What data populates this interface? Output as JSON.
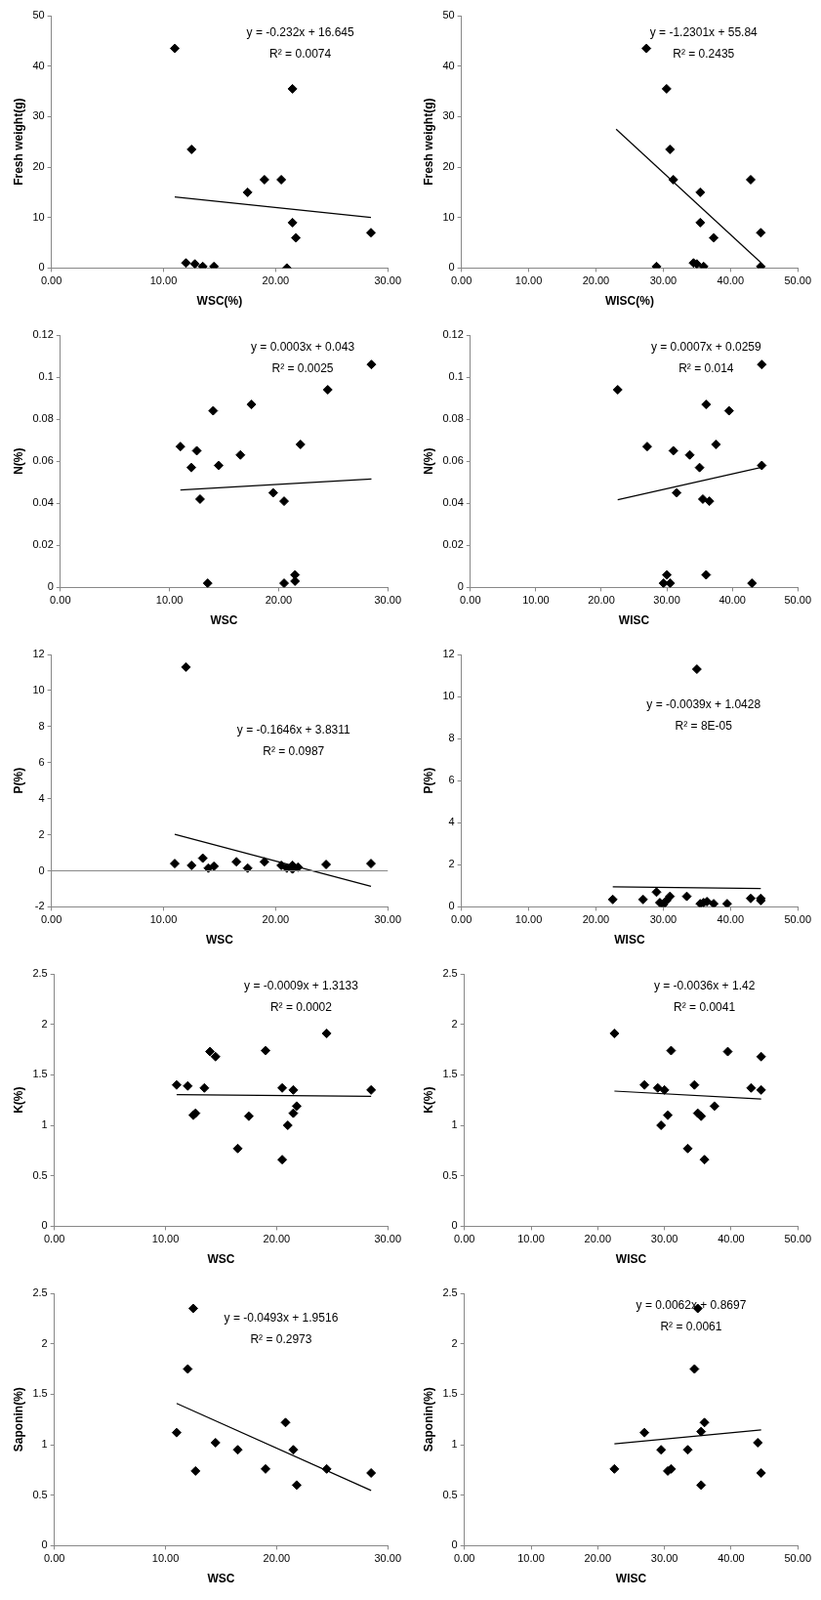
{
  "chart_data": [
    {
      "type": "scatter",
      "x_label": "WSC(%)",
      "y_label": "Fresh weight(g)",
      "xlim": [
        0,
        30
      ],
      "xticks": [
        {
          "value": 0,
          "label": "0.00"
        },
        {
          "value": 10,
          "label": "10.00"
        },
        {
          "value": 20,
          "label": "20.00"
        },
        {
          "value": 30,
          "label": "30.00"
        }
      ],
      "ylim": [
        0,
        50
      ],
      "yticks": [
        0,
        10,
        20,
        30,
        40,
        50
      ],
      "grid": false,
      "annotations": [
        "y = -0.232x + 16.645",
        "R² = 0.0074"
      ],
      "series": [
        {
          "type": "scatter",
          "marker": "diamond",
          "color": "#000000",
          "x": [
            11,
            12,
            12.5,
            12.8,
            13.5,
            14.5,
            17.5,
            19,
            20.5,
            21,
            21.5,
            21.5,
            21.8,
            28.5
          ],
          "values": [
            43.5,
            1,
            23.5,
            0.8,
            0.3,
            0.3,
            15,
            17.5,
            17.5,
            0,
            35.5,
            9,
            6,
            7
          ]
        },
        {
          "type": "line",
          "line_style": "solid",
          "color": "#000000",
          "x": [
            11,
            28.5
          ],
          "values": [
            14.1,
            10.0
          ]
        }
      ]
    },
    {
      "type": "scatter",
      "x_label": "WISC(%)",
      "y_label": "Fresh weight(g)",
      "xlim": [
        0,
        50
      ],
      "xticks": [
        {
          "value": 0,
          "label": "0.00"
        },
        {
          "value": 10,
          "label": "10.00"
        },
        {
          "value": 20,
          "label": "20.00"
        },
        {
          "value": 30,
          "label": "30.00"
        },
        {
          "value": 40,
          "label": "40.00"
        },
        {
          "value": 50,
          "label": "50.00"
        }
      ],
      "ylim": [
        0,
        50
      ],
      "yticks": [
        0,
        10,
        20,
        30,
        40,
        50
      ],
      "grid": false,
      "annotations": [
        "y = -1.2301x + 55.84",
        "R² = 0.2435"
      ],
      "series": [
        {
          "type": "scatter",
          "marker": "diamond",
          "color": "#000000",
          "x": [
            27.5,
            30.5,
            31,
            31.5,
            29,
            34.5,
            35,
            35.5,
            35.5,
            36,
            37.5,
            43,
            44.5,
            44.5
          ],
          "values": [
            43.5,
            35.5,
            23.5,
            17.5,
            0.3,
            1,
            0.8,
            9,
            15,
            0.3,
            6,
            17.5,
            0.3,
            7
          ]
        },
        {
          "type": "line",
          "line_style": "solid",
          "color": "#000000",
          "x": [
            23,
            44.5
          ],
          "values": [
            27.5,
            1.1
          ]
        }
      ]
    },
    {
      "type": "scatter",
      "x_label": "WSC",
      "y_label": "N(%)",
      "xlim": [
        0,
        30
      ],
      "xticks": [
        {
          "value": 0,
          "label": "0.00"
        },
        {
          "value": 10,
          "label": "10.00"
        },
        {
          "value": 20,
          "label": "20.00"
        },
        {
          "value": 30,
          "label": "30.00"
        }
      ],
      "ylim": [
        0,
        0.12
      ],
      "yticks": [
        0,
        0.02,
        0.04,
        0.06,
        0.08,
        0.1,
        0.12
      ],
      "grid": false,
      "annotations": [
        "y = 0.0003x + 0.043",
        "R² = 0.0025"
      ],
      "series": [
        {
          "type": "scatter",
          "marker": "diamond",
          "color": "#000000",
          "x": [
            11,
            12,
            12.5,
            12.8,
            13.5,
            14,
            14.5,
            16.5,
            17.5,
            19.5,
            20.5,
            20.5,
            21.5,
            21.5,
            22,
            24.5,
            28.5
          ],
          "values": [
            0.067,
            0.057,
            0.065,
            0.042,
            0.002,
            0.084,
            0.058,
            0.063,
            0.087,
            0.045,
            0.041,
            0.002,
            0.006,
            0.003,
            0.068,
            0.094,
            0.106
          ]
        },
        {
          "type": "line",
          "line_style": "solid",
          "color": "#000000",
          "x": [
            11,
            28.5
          ],
          "values": [
            0.0463,
            0.0516
          ]
        }
      ]
    },
    {
      "type": "scatter",
      "x_label": "WISC",
      "y_label": "N(%)",
      "xlim": [
        0,
        50
      ],
      "xticks": [
        {
          "value": 0,
          "label": "0.00"
        },
        {
          "value": 10,
          "label": "10.00"
        },
        {
          "value": 20,
          "label": "20.00"
        },
        {
          "value": 30,
          "label": "30.00"
        },
        {
          "value": 40,
          "label": "40.00"
        },
        {
          "value": 50,
          "label": "50.00"
        }
      ],
      "ylim": [
        0,
        0.12
      ],
      "yticks": [
        0,
        0.02,
        0.04,
        0.06,
        0.08,
        0.1,
        0.12
      ],
      "grid": false,
      "annotations": [
        "y = 0.0007x + 0.0259",
        "R² = 0.014"
      ],
      "series": [
        {
          "type": "scatter",
          "marker": "diamond",
          "color": "#000000",
          "x": [
            22.5,
            27,
            29.5,
            30,
            30.5,
            31,
            31.5,
            33.5,
            35,
            35.5,
            36,
            36,
            36.5,
            37.5,
            39.5,
            43,
            44.5,
            44.5
          ],
          "values": [
            0.094,
            0.067,
            0.002,
            0.006,
            0.002,
            0.065,
            0.045,
            0.063,
            0.057,
            0.042,
            0.006,
            0.087,
            0.041,
            0.068,
            0.084,
            0.002,
            0.058,
            0.106
          ]
        },
        {
          "type": "line",
          "line_style": "solid",
          "color": "#000000",
          "x": [
            22.5,
            44.5
          ],
          "values": [
            0.0417,
            0.0571
          ]
        }
      ]
    },
    {
      "type": "scatter",
      "x_label": "WSC",
      "y_label": "P(%)",
      "xlim": [
        0,
        30
      ],
      "xticks": [
        {
          "value": 0,
          "label": "0.00"
        },
        {
          "value": 10,
          "label": "10.00"
        },
        {
          "value": 20,
          "label": "20.00"
        },
        {
          "value": 30,
          "label": "30.00"
        }
      ],
      "ylim": [
        -2,
        12
      ],
      "yticks": [
        -2,
        0,
        2,
        4,
        6,
        8,
        10,
        12
      ],
      "grid": false,
      "annotations": [
        "y = -0.1646x + 3.8311",
        "R² = 0.0987"
      ],
      "series": [
        {
          "type": "scatter",
          "marker": "diamond",
          "color": "#000000",
          "x": [
            11,
            12,
            12.5,
            13.5,
            14,
            14.5,
            16.5,
            17.5,
            19,
            20.5,
            21,
            21.5,
            21.5,
            22,
            24.5,
            28.5
          ],
          "values": [
            0.4,
            11.3,
            0.3,
            0.7,
            0.15,
            0.25,
            0.5,
            0.15,
            0.5,
            0.3,
            0.15,
            0.3,
            0.1,
            0.2,
            0.35,
            0.4
          ]
        },
        {
          "type": "line",
          "line_style": "solid",
          "color": "#000000",
          "x": [
            11,
            28.5
          ],
          "values": [
            2.02,
            -0.86
          ]
        }
      ]
    },
    {
      "type": "scatter",
      "x_label": "WISC",
      "y_label": "P(%)",
      "xlim": [
        0,
        50
      ],
      "xticks": [
        {
          "value": 0,
          "label": "0.00"
        },
        {
          "value": 10,
          "label": "10.00"
        },
        {
          "value": 20,
          "label": "20.00"
        },
        {
          "value": 30,
          "label": "30.00"
        },
        {
          "value": 40,
          "label": "40.00"
        },
        {
          "value": 50,
          "label": "50.00"
        }
      ],
      "ylim": [
        0,
        12
      ],
      "yticks": [
        0,
        2,
        4,
        6,
        8,
        10,
        12
      ],
      "grid": false,
      "annotations": [
        "y = -0.0039x + 1.0428",
        "R² = 8E-05"
      ],
      "series": [
        {
          "type": "scatter",
          "marker": "diamond",
          "color": "#000000",
          "x": [
            22.5,
            27,
            29,
            29.5,
            30,
            30.5,
            31,
            33.5,
            35,
            35.5,
            36,
            36.5,
            37.5,
            39.5,
            43,
            44.5,
            44.5
          ],
          "values": [
            0.35,
            0.35,
            0.7,
            0.2,
            0.1,
            0.3,
            0.5,
            0.5,
            11.3,
            0.15,
            0.2,
            0.25,
            0.15,
            0.15,
            0.4,
            0.3,
            0.4
          ]
        },
        {
          "type": "line",
          "line_style": "solid",
          "color": "#000000",
          "x": [
            22.5,
            44.5
          ],
          "values": [
            0.955,
            0.869
          ]
        }
      ]
    },
    {
      "type": "scatter",
      "x_label": "WSC",
      "y_label": "K(%)",
      "xlim": [
        0,
        30
      ],
      "xticks": [
        {
          "value": 0,
          "label": "0.00"
        },
        {
          "value": 10,
          "label": "10.00"
        },
        {
          "value": 20,
          "label": "20.00"
        },
        {
          "value": 30,
          "label": "30.00"
        }
      ],
      "ylim": [
        0,
        2.5
      ],
      "yticks": [
        0,
        0.5,
        1,
        1.5,
        2,
        2.5
      ],
      "grid": false,
      "annotations": [
        "y = -0.0009x + 1.3133",
        "R² = 0.0002"
      ],
      "series": [
        {
          "type": "scatter",
          "marker": "diamond",
          "color": "#000000",
          "x": [
            11,
            12,
            12.5,
            12.7,
            13.5,
            14,
            14.5,
            16.5,
            17.5,
            19,
            20.5,
            20.5,
            21,
            21.5,
            21.5,
            21.8,
            24.5,
            28.5
          ],
          "values": [
            1.4,
            1.39,
            1.1,
            1.12,
            1.37,
            1.73,
            1.68,
            0.77,
            1.09,
            1.74,
            1.37,
            0.66,
            1,
            1.35,
            1.12,
            1.19,
            1.91,
            1.35
          ]
        },
        {
          "type": "line",
          "line_style": "solid",
          "color": "#000000",
          "x": [
            11,
            28.5
          ],
          "values": [
            1.3034,
            1.2877
          ]
        }
      ]
    },
    {
      "type": "scatter",
      "x_label": "WISC",
      "y_label": "K(%)",
      "xlim": [
        0,
        50
      ],
      "xticks": [
        {
          "value": 0,
          "label": "0.00"
        },
        {
          "value": 10,
          "label": "10.00"
        },
        {
          "value": 20,
          "label": "20.00"
        },
        {
          "value": 30,
          "label": "30.00"
        },
        {
          "value": 40,
          "label": "40.00"
        },
        {
          "value": 50,
          "label": "50.00"
        }
      ],
      "ylim": [
        0,
        2.5
      ],
      "yticks": [
        0,
        0.5,
        1,
        1.5,
        2,
        2.5
      ],
      "grid": false,
      "annotations": [
        "y = -0.0036x + 1.42",
        "R² = 0.0041"
      ],
      "series": [
        {
          "type": "scatter",
          "marker": "diamond",
          "color": "#000000",
          "x": [
            22.5,
            27,
            29,
            29.5,
            30,
            30.5,
            31,
            33.5,
            34.5,
            35,
            35.5,
            36,
            37.5,
            39.5,
            43,
            44.5,
            44.5
          ],
          "values": [
            1.91,
            1.4,
            1.37,
            1,
            1.35,
            1.1,
            1.74,
            0.77,
            1.4,
            1.12,
            1.09,
            0.66,
            1.19,
            1.73,
            1.37,
            1.68,
            1.35
          ]
        },
        {
          "type": "line",
          "line_style": "solid",
          "color": "#000000",
          "x": [
            22.5,
            44.5
          ],
          "values": [
            1.339,
            1.2598
          ]
        }
      ]
    },
    {
      "type": "scatter",
      "x_label": "WSC",
      "y_label": "Saponin(%)",
      "xlim": [
        0,
        30
      ],
      "xticks": [
        {
          "value": 0,
          "label": "0.00"
        },
        {
          "value": 10,
          "label": "10.00"
        },
        {
          "value": 20,
          "label": "20.00"
        },
        {
          "value": 30,
          "label": "30.00"
        }
      ],
      "ylim": [
        0,
        2.5
      ],
      "yticks": [
        0,
        0.5,
        1,
        1.5,
        2,
        2.5
      ],
      "grid": false,
      "annotations": [
        "y = -0.0493x + 1.9516",
        "R² = 0.2973"
      ],
      "series": [
        {
          "type": "scatter",
          "marker": "diamond",
          "color": "#000000",
          "x": [
            11,
            12,
            12.5,
            12.7,
            14.5,
            16.5,
            19,
            20.8,
            21.5,
            21.8,
            24.5,
            28.5
          ],
          "values": [
            1.12,
            1.75,
            2.35,
            0.74,
            1.02,
            0.95,
            0.76,
            1.22,
            0.95,
            0.6,
            0.76,
            0.72
          ]
        },
        {
          "type": "line",
          "line_style": "solid",
          "color": "#000000",
          "x": [
            11,
            28.5
          ],
          "values": [
            1.409,
            0.547
          ]
        }
      ]
    },
    {
      "type": "scatter",
      "x_label": "WISC",
      "y_label": "Saponin(%)",
      "xlim": [
        0,
        50
      ],
      "xticks": [
        {
          "value": 0,
          "label": "0.00"
        },
        {
          "value": 10,
          "label": "10.00"
        },
        {
          "value": 20,
          "label": "20.00"
        },
        {
          "value": 30,
          "label": "30.00"
        },
        {
          "value": 40,
          "label": "40.00"
        },
        {
          "value": 50,
          "label": "50.00"
        }
      ],
      "ylim": [
        0,
        2.5
      ],
      "yticks": [
        0,
        0.5,
        1,
        1.5,
        2,
        2.5
      ],
      "grid": false,
      "annotations": [
        "y = 0.0062x + 0.8697",
        "R² = 0.0061"
      ],
      "series": [
        {
          "type": "scatter",
          "marker": "diamond",
          "color": "#000000",
          "x": [
            22.5,
            27,
            29.5,
            30.5,
            31,
            33.5,
            34.5,
            35,
            35.5,
            35.5,
            36,
            44,
            44.5
          ],
          "values": [
            0.76,
            1.12,
            0.95,
            0.74,
            0.76,
            0.95,
            1.75,
            2.35,
            1.13,
            0.6,
            1.22,
            1.02,
            0.72
          ]
        },
        {
          "type": "line",
          "line_style": "solid",
          "color": "#000000",
          "x": [
            22.5,
            44.5
          ],
          "values": [
            1.009,
            1.146
          ]
        }
      ]
    }
  ]
}
